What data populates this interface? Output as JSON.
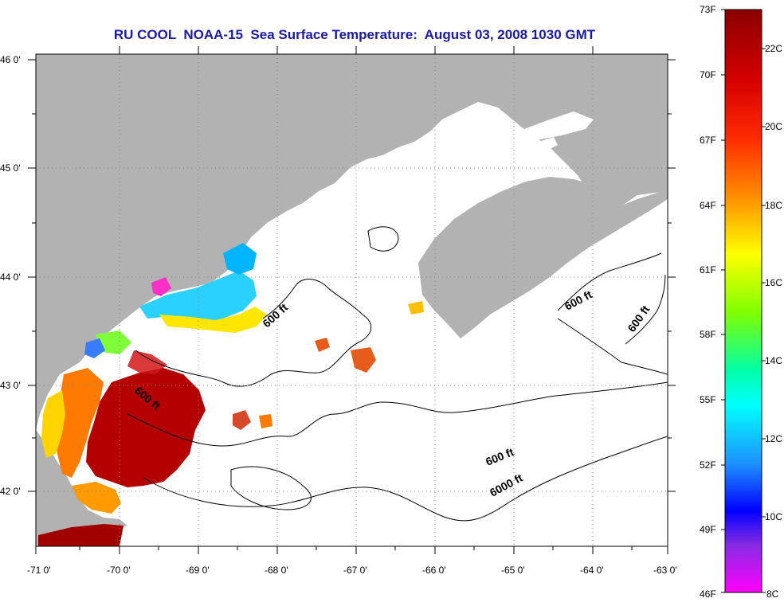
{
  "title": "RU COOL  NOAA-15  Sea Surface Temperature:  August 03, 2008 1030 GMT",
  "map": {
    "lon_labels": [
      "-71 0'",
      "-70 0'",
      "-69 0'",
      "-68 0'",
      "-67 0'",
      "-66 0'",
      "-65 0'",
      "-64 0'",
      "-63 0'"
    ],
    "lat_labels": [
      "46 0'",
      "45 0'",
      "44 0'",
      "43 0'",
      "42 0'"
    ],
    "lon_range": [
      -71,
      -63
    ],
    "lat_range": [
      41.5,
      46
    ],
    "contour_labels": [
      {
        "id": "c1",
        "text": "600 ft"
      },
      {
        "id": "c2",
        "text": "600 ft"
      },
      {
        "id": "c3",
        "text": "600 ft"
      },
      {
        "id": "c4",
        "text": "600 ft"
      },
      {
        "id": "c5",
        "text": "600 ft"
      },
      {
        "id": "c6",
        "text": "6000 ft"
      }
    ]
  },
  "colorbar": {
    "fahrenheit": [
      "73F",
      "70F",
      "67F",
      "64F",
      "61F",
      "58F",
      "55F",
      "52F",
      "49F",
      "46F"
    ],
    "celsius": [
      "22C",
      "20C",
      "18C",
      "16C",
      "14C",
      "12C",
      "10C",
      "8C"
    ],
    "colors": [
      "#8b0000",
      "#ff0000",
      "#ff8c00",
      "#ffff00",
      "#7fff00",
      "#00ffff",
      "#1e90ff",
      "#0000ff",
      "#8a2be2",
      "#ff00ff"
    ]
  }
}
